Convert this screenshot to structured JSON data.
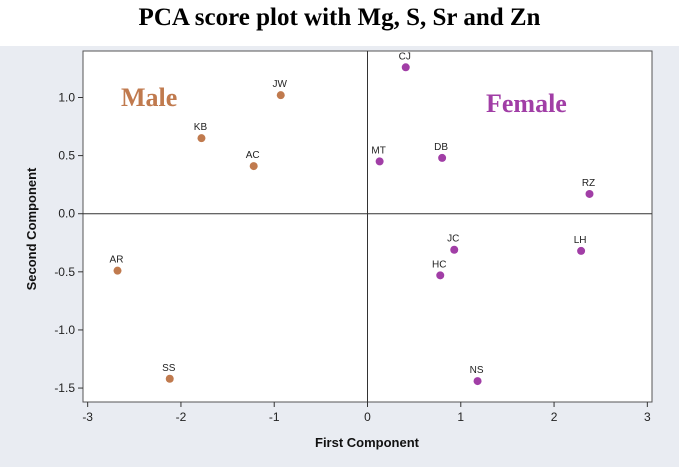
{
  "chart_data": {
    "type": "scatter",
    "title": "PCA score plot with Mg, S, Sr and Zn",
    "xlabel": "First Component",
    "ylabel": "Second Component",
    "xlim": [
      -3.05,
      3.05
    ],
    "ylim": [
      -1.62,
      1.4
    ],
    "xticks": [
      -3,
      -2,
      -1,
      0,
      1,
      2,
      3
    ],
    "yticks": [
      -1.5,
      -1.0,
      -0.5,
      0.0,
      0.5,
      1.0
    ],
    "ytick_labels": [
      "-1.5",
      "-1.0",
      "-0.5",
      "0.0",
      "0.5",
      "1.0"
    ],
    "reference_lines": {
      "x": 0,
      "y": 0
    },
    "grid": false,
    "groups": [
      {
        "name": "Male",
        "color": "#c07a4e"
      },
      {
        "name": "Female",
        "color": "#a13ea6"
      }
    ],
    "points": [
      {
        "label": "JW",
        "x": -0.93,
        "y": 1.02,
        "group": "Male"
      },
      {
        "label": "KB",
        "x": -1.78,
        "y": 0.65,
        "group": "Male"
      },
      {
        "label": "AC",
        "x": -1.22,
        "y": 0.41,
        "group": "Male"
      },
      {
        "label": "AR",
        "x": -2.68,
        "y": -0.49,
        "group": "Male"
      },
      {
        "label": "SS",
        "x": -2.12,
        "y": -1.42,
        "group": "Male"
      },
      {
        "label": "CJ",
        "x": 0.41,
        "y": 1.26,
        "group": "Female"
      },
      {
        "label": "MT",
        "x": 0.13,
        "y": 0.45,
        "group": "Female"
      },
      {
        "label": "DB",
        "x": 0.8,
        "y": 0.48,
        "group": "Female"
      },
      {
        "label": "RZ",
        "x": 2.38,
        "y": 0.17,
        "group": "Female"
      },
      {
        "label": "JC",
        "x": 0.93,
        "y": -0.31,
        "group": "Female"
      },
      {
        "label": "HC",
        "x": 0.78,
        "y": -0.53,
        "group": "Female"
      },
      {
        "label": "LH",
        "x": 2.29,
        "y": -0.32,
        "group": "Female"
      },
      {
        "label": "NS",
        "x": 1.18,
        "y": -1.44,
        "group": "Female"
      }
    ]
  }
}
